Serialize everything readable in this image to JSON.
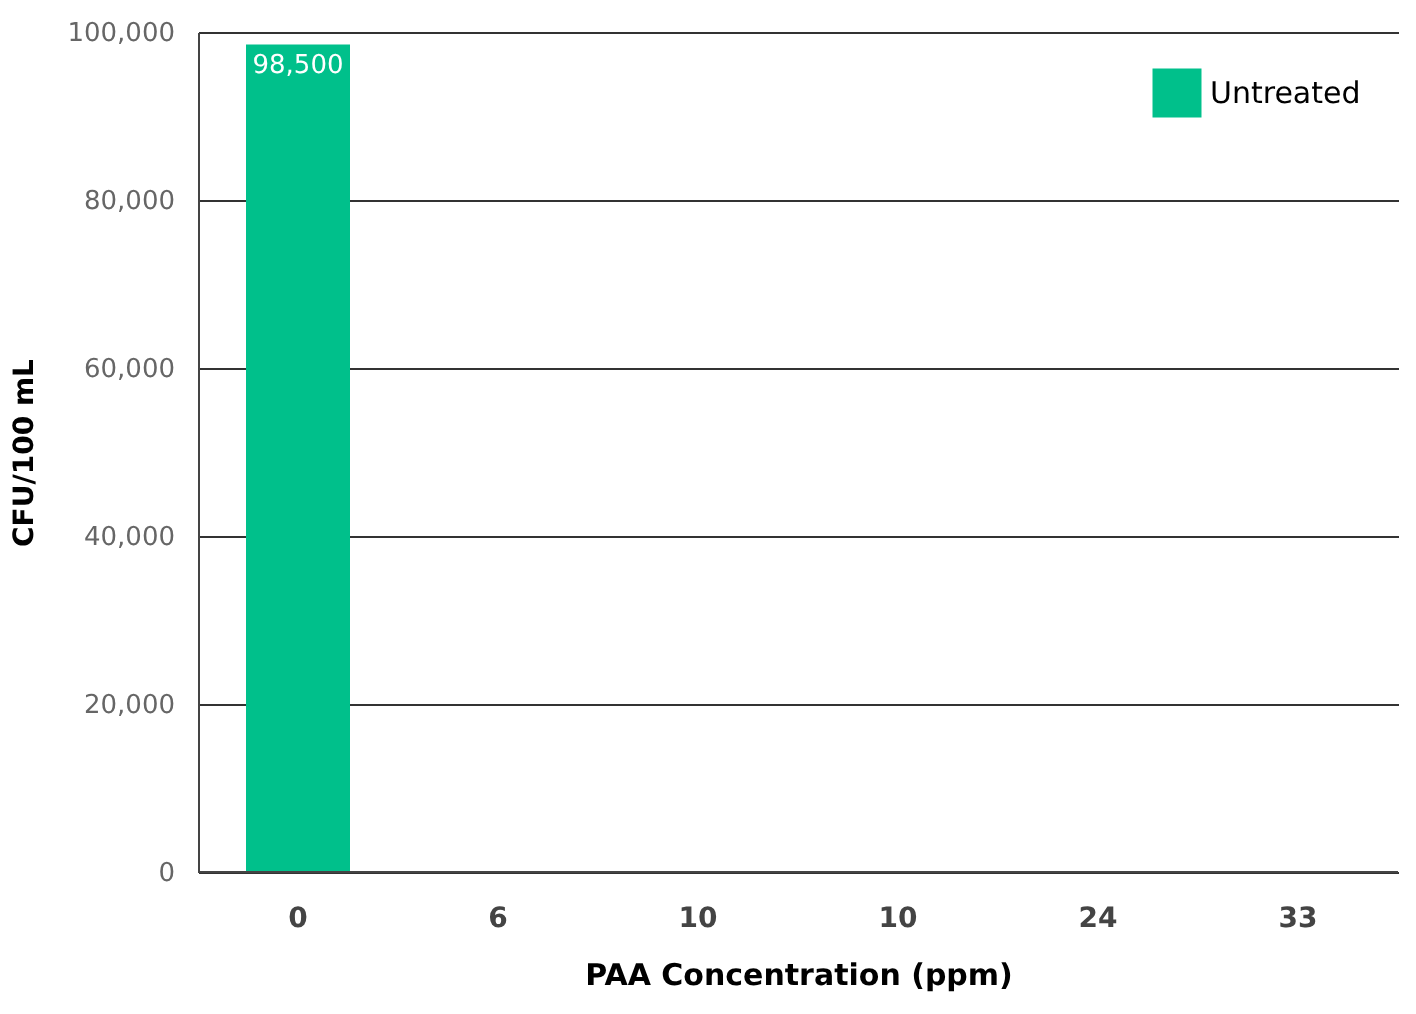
{
  "chart_data": {
    "type": "bar",
    "xlabel": "PAA Concentration (ppm)",
    "ylabel": "CFU/100 mL",
    "categories": [
      "0",
      "6",
      "10",
      "10",
      "24",
      "33"
    ],
    "series": [
      {
        "name": "Untreated",
        "color": "#00c08b",
        "values": [
          98500,
          0,
          0,
          0,
          0,
          0
        ],
        "value_labels": [
          "98,500",
          null,
          null,
          null,
          null,
          null
        ]
      }
    ],
    "ylim": [
      0,
      100000
    ],
    "yticks": [
      {
        "value": 0,
        "label": "0"
      },
      {
        "value": 20000,
        "label": "20,000"
      },
      {
        "value": 40000,
        "label": "40,000"
      },
      {
        "value": 60000,
        "label": "60,000"
      },
      {
        "value": 80000,
        "label": "80,000"
      },
      {
        "value": 100000,
        "label": "100,000"
      }
    ],
    "grid": "y",
    "legend": "top right"
  }
}
